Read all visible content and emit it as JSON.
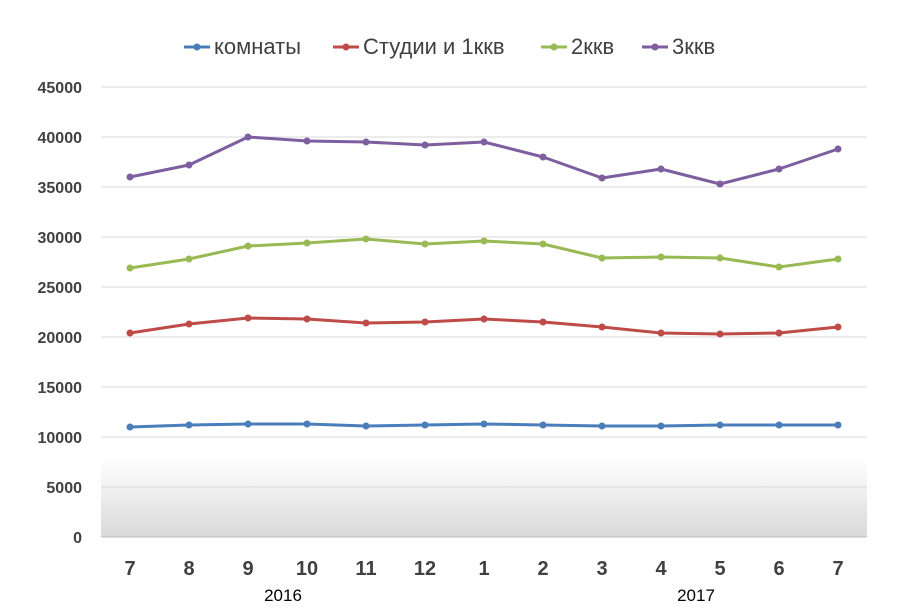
{
  "chart_data": {
    "type": "line",
    "title": "",
    "xlabel": "",
    "ylabel": "",
    "categories": [
      "7",
      "8",
      "9",
      "10",
      "11",
      "12",
      "1",
      "2",
      "3",
      "4",
      "5",
      "6",
      "7"
    ],
    "year_labels": [
      {
        "label": "2016",
        "under_category_index": 3
      },
      {
        "label": "2017",
        "under_category_index": 10
      }
    ],
    "ylim": [
      0,
      45000
    ],
    "yticks": [
      "0",
      "5000",
      "10000",
      "15000",
      "20000",
      "25000",
      "30000",
      "35000",
      "40000",
      "45000"
    ],
    "grid": true,
    "legend_position": "top",
    "series": [
      {
        "name": "комнаты",
        "color": "#4a7ebb",
        "values": [
          11000,
          11200,
          11300,
          11300,
          11100,
          11200,
          11300,
          11200,
          11100,
          11100,
          11200,
          11200,
          11200
        ]
      },
      {
        "name": "Студии и 1ккв",
        "color": "#be4b48",
        "values": [
          20400,
          21300,
          21900,
          21800,
          21400,
          21500,
          21800,
          21500,
          21000,
          20400,
          20300,
          20400,
          21000
        ]
      },
      {
        "name": "2ккв",
        "color": "#98b954",
        "values": [
          26900,
          27800,
          29100,
          29400,
          29800,
          29300,
          29600,
          29300,
          27900,
          28000,
          27900,
          27000,
          27800
        ]
      },
      {
        "name": "3ккв",
        "color": "#7d5fa0",
        "values": [
          36000,
          37200,
          40000,
          39600,
          39500,
          39200,
          39500,
          38000,
          35900,
          36800,
          35300,
          36800,
          38800
        ]
      }
    ]
  }
}
